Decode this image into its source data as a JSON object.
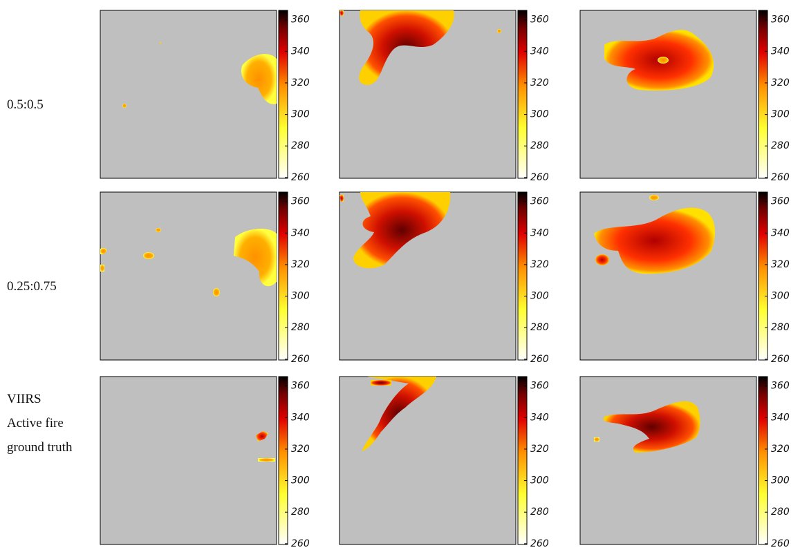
{
  "rows": [
    {
      "label": "0.5:0.5"
    },
    {
      "label": "0.25:0.75"
    },
    {
      "label": "VIIRS Active fire ground truth"
    }
  ],
  "colorbar": {
    "lim": [
      259.5,
      366
    ],
    "ticks": [
      260,
      280,
      300,
      320,
      340,
      360
    ]
  }
}
